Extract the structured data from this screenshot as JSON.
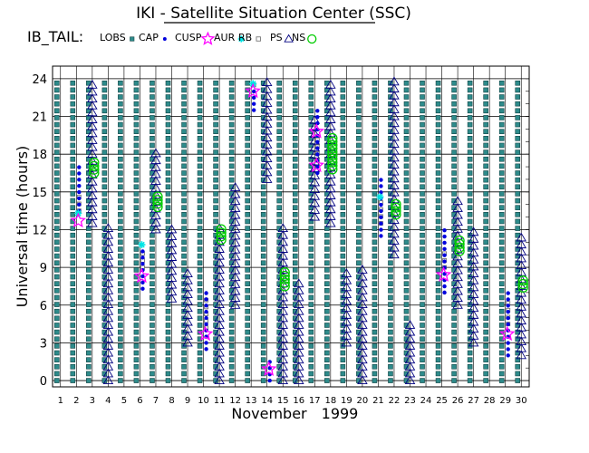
{
  "chart_data": {
    "type": "scatter",
    "title": "IKI - Satellite Situation Center (SSC)",
    "panel_label": "IB_TAIL:",
    "xlabel_month": "November",
    "xlabel_year": "1999",
    "ylabel": "Universal time (hours)",
    "xlim": [
      0.5,
      30.5
    ],
    "ylim": [
      -0.5,
      25
    ],
    "yticks": [
      0,
      3,
      6,
      9,
      12,
      15,
      18,
      21,
      24
    ],
    "xticks": [
      1,
      2,
      3,
      4,
      5,
      6,
      7,
      8,
      9,
      10,
      11,
      12,
      13,
      14,
      15,
      16,
      17,
      18,
      19,
      20,
      21,
      22,
      23,
      24,
      25,
      26,
      27,
      28,
      29,
      30
    ],
    "grid": true,
    "legend_position": "top",
    "legend": [
      {
        "key": "LOBS",
        "label": "LOBS",
        "symbol": "square-filled",
        "color": "#2e8b8b"
      },
      {
        "key": "CAP",
        "label": "CAP",
        "symbol": "dot",
        "color": "#0000dd"
      },
      {
        "key": "CUSP",
        "label": "CUSP",
        "symbol": "star",
        "color": "#ff00ff"
      },
      {
        "key": "AUR",
        "label": "AUR",
        "symbol": "asterisk",
        "color": "#00e5e5"
      },
      {
        "key": "RB",
        "label": "RB",
        "symbol": "square-open",
        "color": "#777777"
      },
      {
        "key": "PS",
        "label": "PS",
        "symbol": "triangle",
        "color": "#000080"
      },
      {
        "key": "NS",
        "label": "NS",
        "symbol": "circle",
        "color": "#00cc00"
      }
    ],
    "series": [
      {
        "region": "LOBS",
        "x": [
          1,
          2,
          3,
          4,
          5,
          6,
          7,
          8,
          9,
          10,
          11,
          12,
          13,
          14,
          15,
          16,
          17,
          18,
          19,
          20,
          21,
          22,
          23,
          24,
          25,
          26,
          27,
          28,
          29,
          30
        ],
        "y_start": 0,
        "y_end": 24
      },
      {
        "region": "CAP",
        "intervals": [
          [
            2,
            13.5,
            17
          ],
          [
            6,
            7.3,
            10.5
          ],
          [
            10,
            2.5,
            7
          ],
          [
            13,
            21.5,
            23
          ],
          [
            14,
            0,
            1.5
          ],
          [
            17,
            16.5,
            21.5
          ],
          [
            21,
            11.5,
            16
          ],
          [
            25,
            7,
            12
          ],
          [
            29,
            2,
            7
          ]
        ]
      },
      {
        "region": "CUSP",
        "points": [
          [
            2,
            12.7
          ],
          [
            6,
            8.3
          ],
          [
            10,
            3.7
          ],
          [
            13,
            23
          ],
          [
            14,
            0.9
          ],
          [
            17,
            17.1
          ],
          [
            17,
            19.8
          ],
          [
            25,
            8.4
          ],
          [
            29,
            3.7
          ]
        ]
      },
      {
        "region": "AUR",
        "points": [
          [
            2,
            13.3
          ],
          [
            6,
            10.8
          ],
          [
            13,
            23.6
          ],
          [
            21,
            14.6
          ]
        ]
      },
      {
        "region": "RB",
        "intervals": [
          [
            2,
            13.5,
            15
          ],
          [
            6,
            9,
            10.5
          ],
          [
            10,
            4.2,
            6.5
          ],
          [
            13,
            23.5,
            24
          ],
          [
            17,
            17.5,
            19.5
          ],
          [
            21,
            12.5,
            14.5
          ],
          [
            25,
            9,
            10.5
          ],
          [
            29,
            4.5,
            6.5
          ]
        ]
      },
      {
        "region": "PS",
        "intervals": [
          [
            3,
            12.5,
            24
          ],
          [
            4,
            0,
            12.5
          ],
          [
            7,
            12,
            18.5
          ],
          [
            8,
            6.5,
            12
          ],
          [
            9,
            3,
            9
          ],
          [
            11,
            0,
            12.5
          ],
          [
            12,
            6,
            15.5
          ],
          [
            14,
            16,
            24
          ],
          [
            15,
            0,
            12.5
          ],
          [
            16,
            0,
            8
          ],
          [
            17,
            13,
            21
          ],
          [
            18,
            12.5,
            24
          ],
          [
            19,
            3,
            9
          ],
          [
            20,
            0,
            9
          ],
          [
            22,
            10,
            24
          ],
          [
            23,
            0,
            4.5
          ],
          [
            26,
            6,
            14.5
          ],
          [
            27,
            3,
            12
          ],
          [
            30,
            2,
            11.5
          ]
        ]
      },
      {
        "region": "NS",
        "intervals": [
          [
            3,
            16.5,
            17.5
          ],
          [
            7,
            13.8,
            14.8
          ],
          [
            11,
            11.2,
            12.2
          ],
          [
            15,
            7.5,
            8.8
          ],
          [
            18,
            16.8,
            19.5
          ],
          [
            22,
            13.2,
            14.2
          ],
          [
            26,
            10.3,
            11.3
          ],
          [
            30,
            7.4,
            8.2
          ]
        ]
      }
    ]
  }
}
